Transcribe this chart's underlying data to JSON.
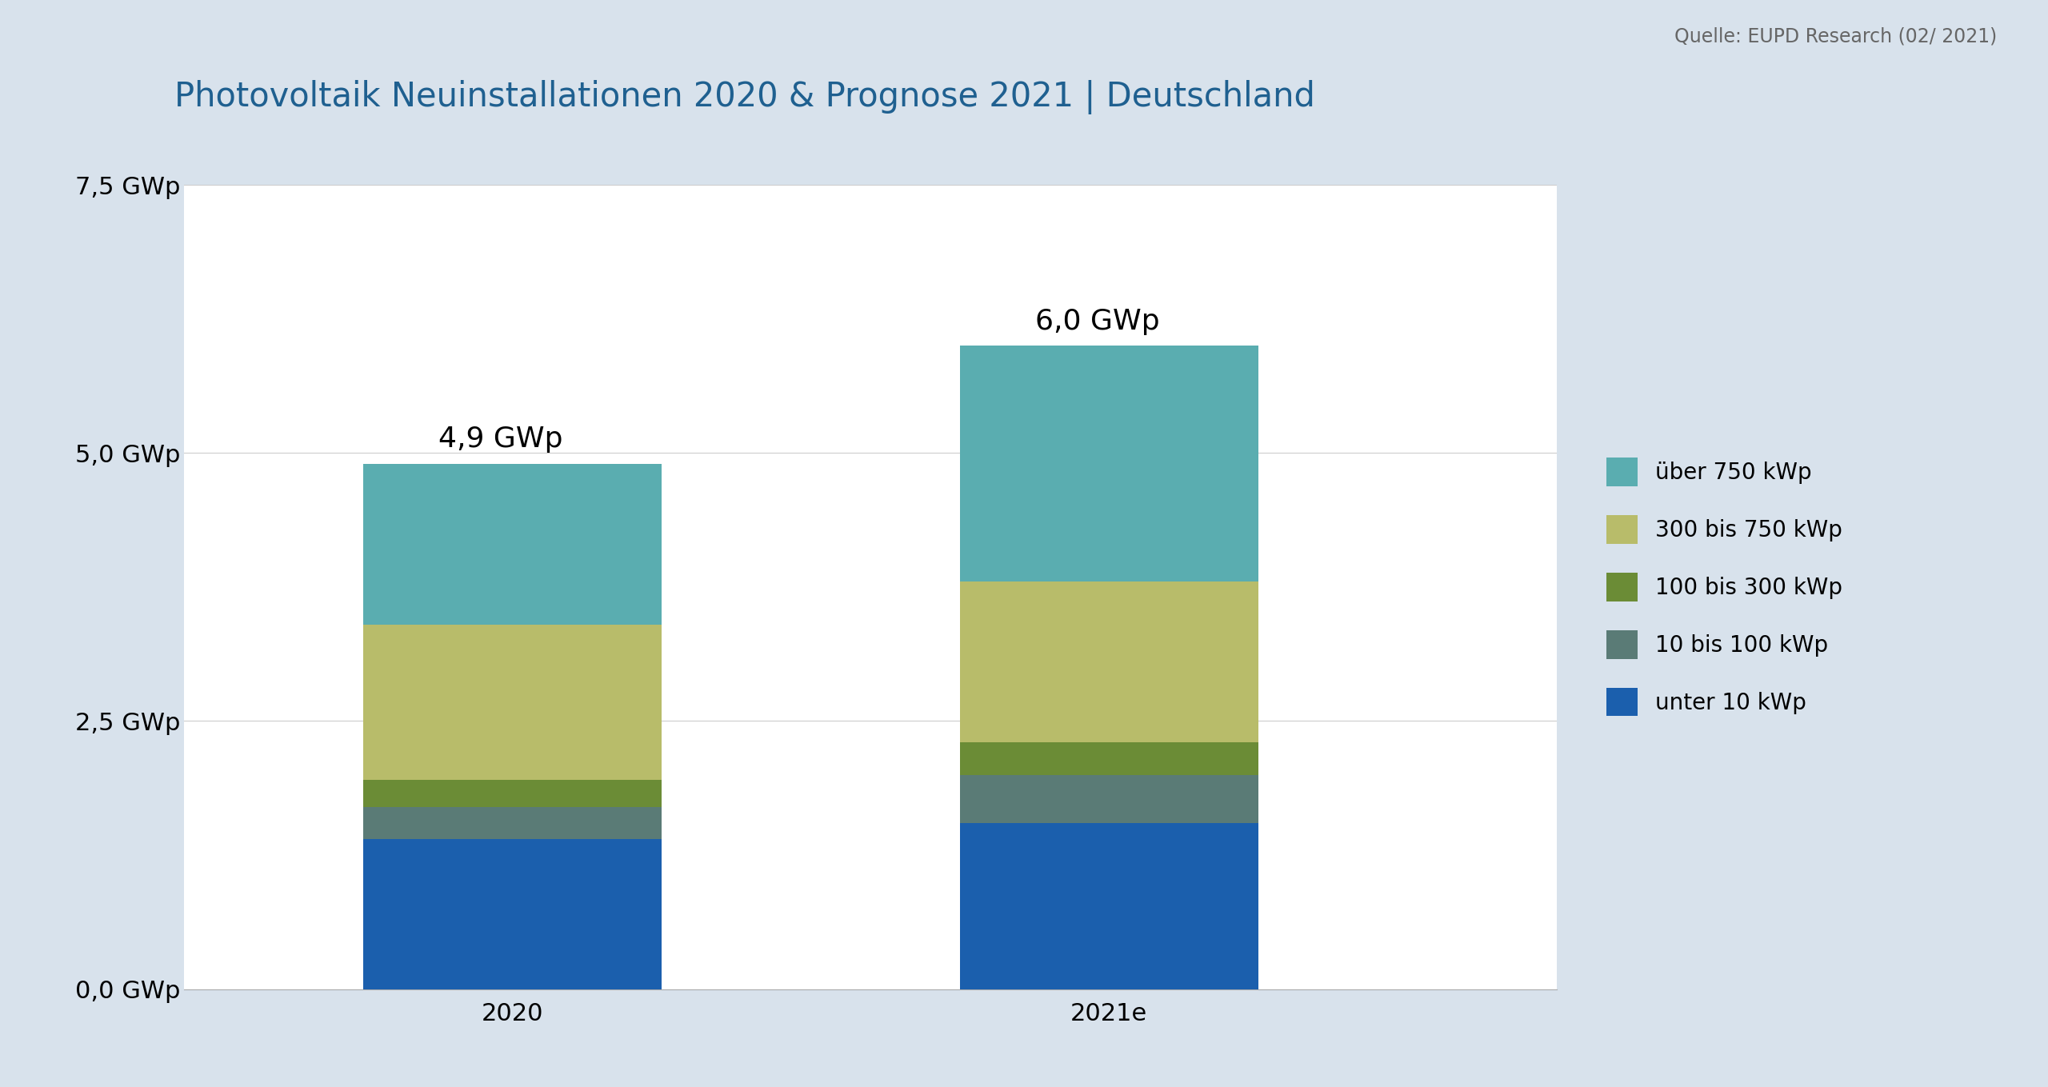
{
  "title": "Photovoltaik Neuinstallationen 2020 & Prognose 2021 | Deutschland",
  "source": "Quelle: EUPD Research (02/ 2021)",
  "categories": [
    "2020",
    "2021e"
  ],
  "segments": [
    {
      "label": "unter 10 kWp",
      "color": "#1b5fad",
      "values": [
        1.4,
        1.55
      ]
    },
    {
      "label": "10 bis 100 kWp",
      "color": "#5a7b76",
      "values": [
        0.3,
        0.45
      ]
    },
    {
      "label": "100 bis 300 kWp",
      "color": "#6b8c36",
      "values": [
        0.25,
        0.3
      ]
    },
    {
      "label": "300 bis 750 kWp",
      "color": "#b8bc6a",
      "values": [
        1.45,
        1.5
      ]
    },
    {
      "label": "über 750 kWp",
      "color": "#5aadb0",
      "values": [
        1.5,
        2.2
      ]
    }
  ],
  "totals": [
    "4,9 GWp",
    "6,0 GWp"
  ],
  "ylim": [
    0,
    7.5
  ],
  "yticks": [
    0.0,
    2.5,
    5.0,
    7.5
  ],
  "ytick_labels": [
    "0,0 GWp",
    "2,5 GWp",
    "5,0 GWp",
    "7,5 GWp"
  ],
  "bar_width": 0.5,
  "background_color": "#d8e2ec",
  "plot_bg_color": "#ffffff",
  "title_color": "#1f6090",
  "source_color": "#666666",
  "title_fontsize": 30,
  "tick_fontsize": 22,
  "legend_fontsize": 20,
  "source_fontsize": 17,
  "total_fontsize": 26,
  "bar_positions": [
    0,
    1
  ],
  "xlim": [
    -0.55,
    1.75
  ]
}
